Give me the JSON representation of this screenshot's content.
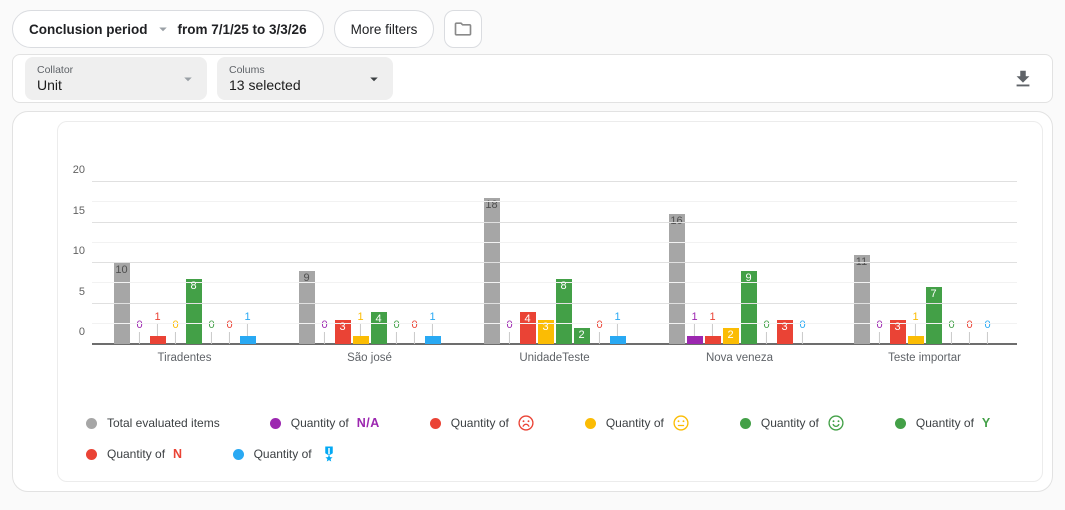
{
  "filter_bar": {
    "period_filter": {
      "label": "Conclusion period",
      "value": "from 7/1/25 to 3/3/26"
    },
    "more_filters_label": "More filters",
    "folder_button_icon": "folder-icon"
  },
  "controls_bar": {
    "collator": {
      "label": "Collator",
      "value": "Unit"
    },
    "columns": {
      "label": "Colums",
      "value": "13 selected"
    },
    "download_icon": "download-icon"
  },
  "colors": {
    "gray": "#a6a6a6",
    "purple": "#9c27b0",
    "red": "#ea4335",
    "yellow": "#fbbc04",
    "green": "#43a047",
    "blue": "#29a9f3",
    "axis_text": "#616161",
    "inside_label_on_gray": "#4f4f4f",
    "inside_label": "#ffffff"
  },
  "chart_data": {
    "type": "bar",
    "title": "",
    "xlabel": "",
    "ylabel": "",
    "ylim": [
      0,
      20
    ],
    "y_ticks": [
      0,
      5,
      10,
      15,
      20
    ],
    "y_minor_ticks": [
      2.5,
      7.5,
      12.5,
      17.5
    ],
    "grid": true,
    "legend_position": "bottom",
    "categories": [
      "Tiradentes",
      "São josé",
      "UnidadeTeste",
      "Nova veneza",
      "Teste importar"
    ],
    "series": [
      {
        "name": "Total evaluated items",
        "legend_prefix": "Total evaluated items",
        "icon": null,
        "icon_text": null,
        "color": "#a6a6a6",
        "values": [
          10,
          9,
          18,
          16,
          11
        ]
      },
      {
        "name": "Quantity of N/A",
        "legend_prefix": "Quantity of",
        "icon": "na-text",
        "icon_text": "N/A",
        "color": "#9c27b0",
        "values": [
          0,
          0,
          0,
          1,
          0
        ]
      },
      {
        "name": "Quantity of (sad)",
        "legend_prefix": "Quantity of",
        "icon": "sad-face-icon",
        "icon_text": null,
        "color": "#ea4335",
        "values": [
          1,
          3,
          4,
          1,
          3
        ]
      },
      {
        "name": "Quantity of (neutral)",
        "legend_prefix": "Quantity of",
        "icon": "neutral-face-icon",
        "icon_text": null,
        "color": "#fbbc04",
        "values": [
          0,
          1,
          3,
          2,
          1
        ]
      },
      {
        "name": "Quantity of (happy)",
        "legend_prefix": "Quantity of",
        "icon": "happy-face-icon",
        "icon_text": null,
        "color": "#43a047",
        "values": [
          8,
          4,
          8,
          9,
          7
        ]
      },
      {
        "name": "Quantity of Y",
        "legend_prefix": "Quantity of",
        "icon": "letter-y-text",
        "icon_text": "Y",
        "color": "#43a047",
        "values": [
          0,
          0,
          2,
          0,
          0
        ]
      },
      {
        "name": "Quantity of N",
        "legend_prefix": "Quantity of",
        "icon": "letter-n-text",
        "icon_text": "N",
        "color": "#ea4335",
        "values": [
          0,
          0,
          0,
          3,
          0
        ]
      },
      {
        "name": "Quantity of (medal)",
        "legend_prefix": "Quantity of",
        "icon": "medal-icon",
        "icon_text": null,
        "color": "#29a9f3",
        "values": [
          1,
          1,
          1,
          0,
          0
        ]
      }
    ]
  }
}
